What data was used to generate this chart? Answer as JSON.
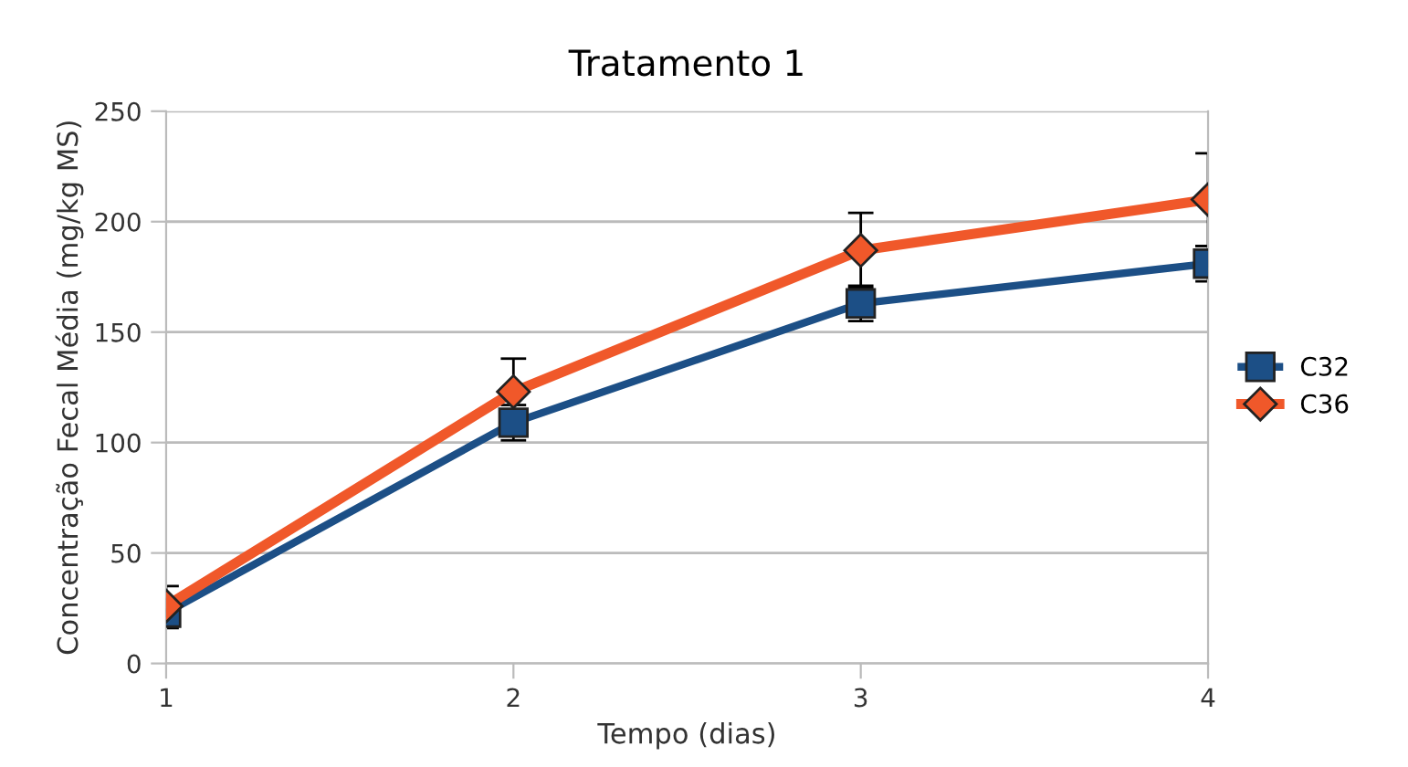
{
  "chart_data": {
    "type": "line",
    "title": "Tratamento 1",
    "xlabel": "Tempo (dias)",
    "ylabel": "Concentração Fecal Média (mg/kg MS)",
    "x": [
      1,
      2,
      3,
      4
    ],
    "xlim": [
      1,
      4
    ],
    "xticks": [
      1,
      2,
      3,
      4
    ],
    "ylim": [
      0,
      250
    ],
    "yticks": [
      0,
      50,
      100,
      150,
      200,
      250
    ],
    "grid": "y",
    "legend": "right",
    "series": [
      {
        "name": "C32",
        "color": "#1c4f86",
        "marker": "square",
        "values": [
          23,
          109,
          163,
          181
        ],
        "errors": [
          7,
          8,
          8,
          8
        ]
      },
      {
        "name": "C36",
        "color": "#f0582a",
        "marker": "diamond",
        "values": [
          26,
          123,
          187,
          210
        ],
        "errors": [
          9,
          15,
          17,
          21
        ]
      }
    ]
  }
}
